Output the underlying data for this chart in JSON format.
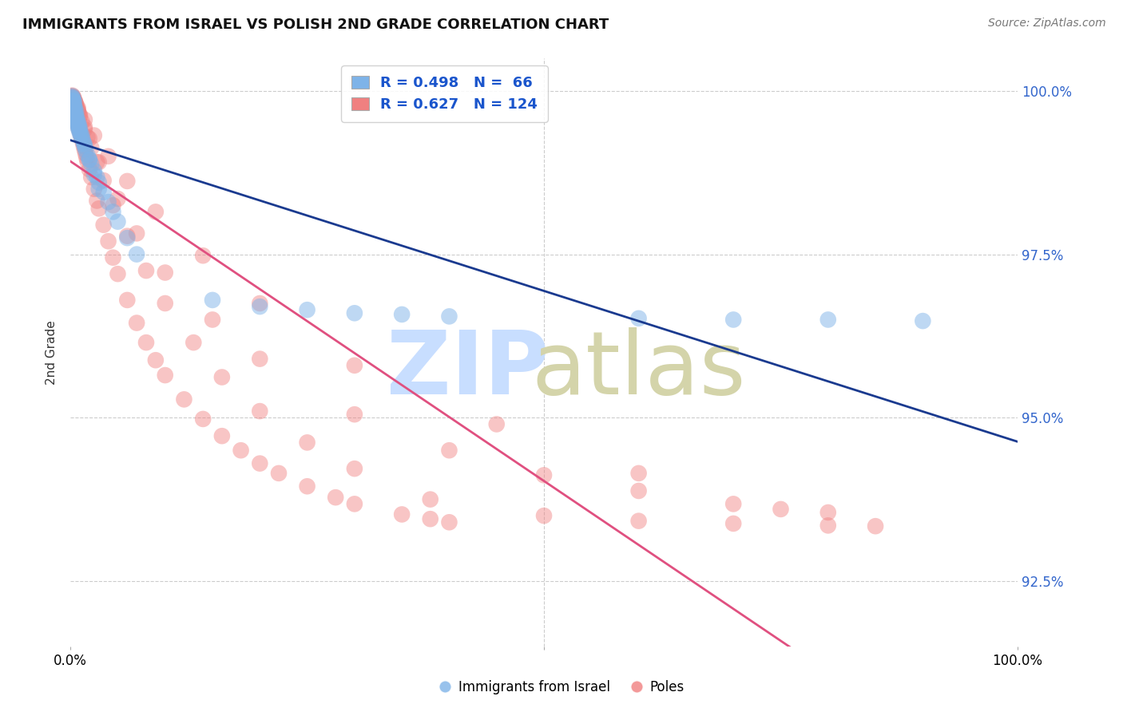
{
  "title": "IMMIGRANTS FROM ISRAEL VS POLISH 2ND GRADE CORRELATION CHART",
  "source_text": "Source: ZipAtlas.com",
  "ylabel": "2nd Grade",
  "ytick_labels": [
    "92.5%",
    "95.0%",
    "97.5%",
    "100.0%"
  ],
  "ytick_values": [
    0.925,
    0.95,
    0.975,
    1.0
  ],
  "legend_blue_r": "R = 0.498",
  "legend_blue_n": "N =  66",
  "legend_pink_r": "R = 0.627",
  "legend_pink_n": "N = 124",
  "blue_color": "#7EB3E8",
  "pink_color": "#F08080",
  "blue_line_color": "#1A3A8F",
  "pink_line_color": "#E05080",
  "xlim": [
    0.0,
    1.0
  ],
  "ylim": [
    0.915,
    1.005
  ],
  "background_color": "#ffffff",
  "grid_color": "#cccccc",
  "blue_x": [
    0.001,
    0.002,
    0.002,
    0.003,
    0.003,
    0.003,
    0.004,
    0.004,
    0.004,
    0.005,
    0.005,
    0.005,
    0.006,
    0.006,
    0.007,
    0.007,
    0.008,
    0.008,
    0.009,
    0.009,
    0.01,
    0.01,
    0.011,
    0.012,
    0.013,
    0.014,
    0.015,
    0.016,
    0.018,
    0.02,
    0.022,
    0.025,
    0.028,
    0.03,
    0.035,
    0.04,
    0.045,
    0.05,
    0.06,
    0.07,
    0.002,
    0.003,
    0.004,
    0.004,
    0.005,
    0.006,
    0.006,
    0.007,
    0.008,
    0.009,
    0.01,
    0.012,
    0.015,
    0.02,
    0.025,
    0.03,
    0.15,
    0.2,
    0.25,
    0.3,
    0.35,
    0.4,
    0.6,
    0.7,
    0.8,
    0.9
  ],
  "blue_y": [
    0.999,
    0.999,
    0.9985,
    0.9985,
    0.998,
    0.9975,
    0.9975,
    0.997,
    0.9968,
    0.9965,
    0.9962,
    0.996,
    0.9958,
    0.9955,
    0.9952,
    0.995,
    0.9948,
    0.9945,
    0.9942,
    0.994,
    0.9938,
    0.9935,
    0.9932,
    0.9928,
    0.9925,
    0.992,
    0.9915,
    0.991,
    0.9902,
    0.9895,
    0.9888,
    0.9878,
    0.9868,
    0.986,
    0.9845,
    0.983,
    0.9815,
    0.98,
    0.9775,
    0.975,
    0.9992,
    0.9988,
    0.9983,
    0.9978,
    0.9973,
    0.9968,
    0.9963,
    0.9958,
    0.9953,
    0.9948,
    0.9943,
    0.9933,
    0.9918,
    0.9895,
    0.9872,
    0.985,
    0.968,
    0.967,
    0.9665,
    0.966,
    0.9658,
    0.9655,
    0.9652,
    0.965,
    0.965,
    0.9648
  ],
  "pink_x": [
    0.001,
    0.001,
    0.002,
    0.002,
    0.003,
    0.003,
    0.003,
    0.004,
    0.004,
    0.004,
    0.005,
    0.005,
    0.005,
    0.006,
    0.006,
    0.006,
    0.007,
    0.007,
    0.008,
    0.008,
    0.008,
    0.009,
    0.009,
    0.01,
    0.01,
    0.011,
    0.011,
    0.012,
    0.013,
    0.014,
    0.015,
    0.016,
    0.017,
    0.018,
    0.02,
    0.022,
    0.025,
    0.028,
    0.03,
    0.035,
    0.04,
    0.045,
    0.05,
    0.06,
    0.07,
    0.08,
    0.09,
    0.1,
    0.12,
    0.14,
    0.16,
    0.18,
    0.2,
    0.22,
    0.25,
    0.28,
    0.3,
    0.35,
    0.38,
    0.4,
    0.002,
    0.003,
    0.004,
    0.005,
    0.006,
    0.007,
    0.008,
    0.009,
    0.01,
    0.012,
    0.015,
    0.018,
    0.022,
    0.028,
    0.035,
    0.045,
    0.06,
    0.08,
    0.1,
    0.13,
    0.16,
    0.2,
    0.25,
    0.3,
    0.38,
    0.5,
    0.6,
    0.7,
    0.8,
    0.85,
    0.003,
    0.004,
    0.005,
    0.006,
    0.008,
    0.01,
    0.015,
    0.02,
    0.03,
    0.05,
    0.07,
    0.1,
    0.15,
    0.2,
    0.3,
    0.4,
    0.5,
    0.6,
    0.7,
    0.8,
    0.003,
    0.005,
    0.008,
    0.015,
    0.025,
    0.04,
    0.06,
    0.09,
    0.14,
    0.2,
    0.3,
    0.45,
    0.6,
    0.75
  ],
  "pink_y": [
    0.9992,
    0.999,
    0.999,
    0.9988,
    0.9988,
    0.9985,
    0.9982,
    0.998,
    0.9978,
    0.9975,
    0.9972,
    0.997,
    0.9968,
    0.9965,
    0.9963,
    0.996,
    0.9958,
    0.9955,
    0.9952,
    0.995,
    0.9948,
    0.9945,
    0.9942,
    0.994,
    0.9938,
    0.9935,
    0.9932,
    0.9928,
    0.9922,
    0.9916,
    0.991,
    0.9904,
    0.9898,
    0.9892,
    0.988,
    0.9868,
    0.985,
    0.9832,
    0.982,
    0.9795,
    0.977,
    0.9745,
    0.972,
    0.968,
    0.9645,
    0.9615,
    0.9588,
    0.9565,
    0.9528,
    0.9498,
    0.9472,
    0.945,
    0.943,
    0.9415,
    0.9395,
    0.9378,
    0.9368,
    0.9352,
    0.9345,
    0.934,
    0.9993,
    0.9989,
    0.9985,
    0.9981,
    0.9977,
    0.9973,
    0.9969,
    0.9965,
    0.9961,
    0.9953,
    0.9941,
    0.9929,
    0.9913,
    0.9891,
    0.9863,
    0.9825,
    0.9778,
    0.9725,
    0.9675,
    0.9615,
    0.9562,
    0.951,
    0.9462,
    0.9422,
    0.9375,
    0.935,
    0.9342,
    0.9338,
    0.9335,
    0.9334,
    0.9991,
    0.9987,
    0.9983,
    0.9979,
    0.9971,
    0.9963,
    0.9945,
    0.9927,
    0.9891,
    0.9835,
    0.9782,
    0.9722,
    0.965,
    0.959,
    0.9505,
    0.945,
    0.9412,
    0.9388,
    0.9368,
    0.9355,
    0.9989,
    0.9983,
    0.9974,
    0.9956,
    0.9932,
    0.99,
    0.9862,
    0.9815,
    0.9748,
    0.9675,
    0.958,
    0.949,
    0.9415,
    0.936
  ]
}
